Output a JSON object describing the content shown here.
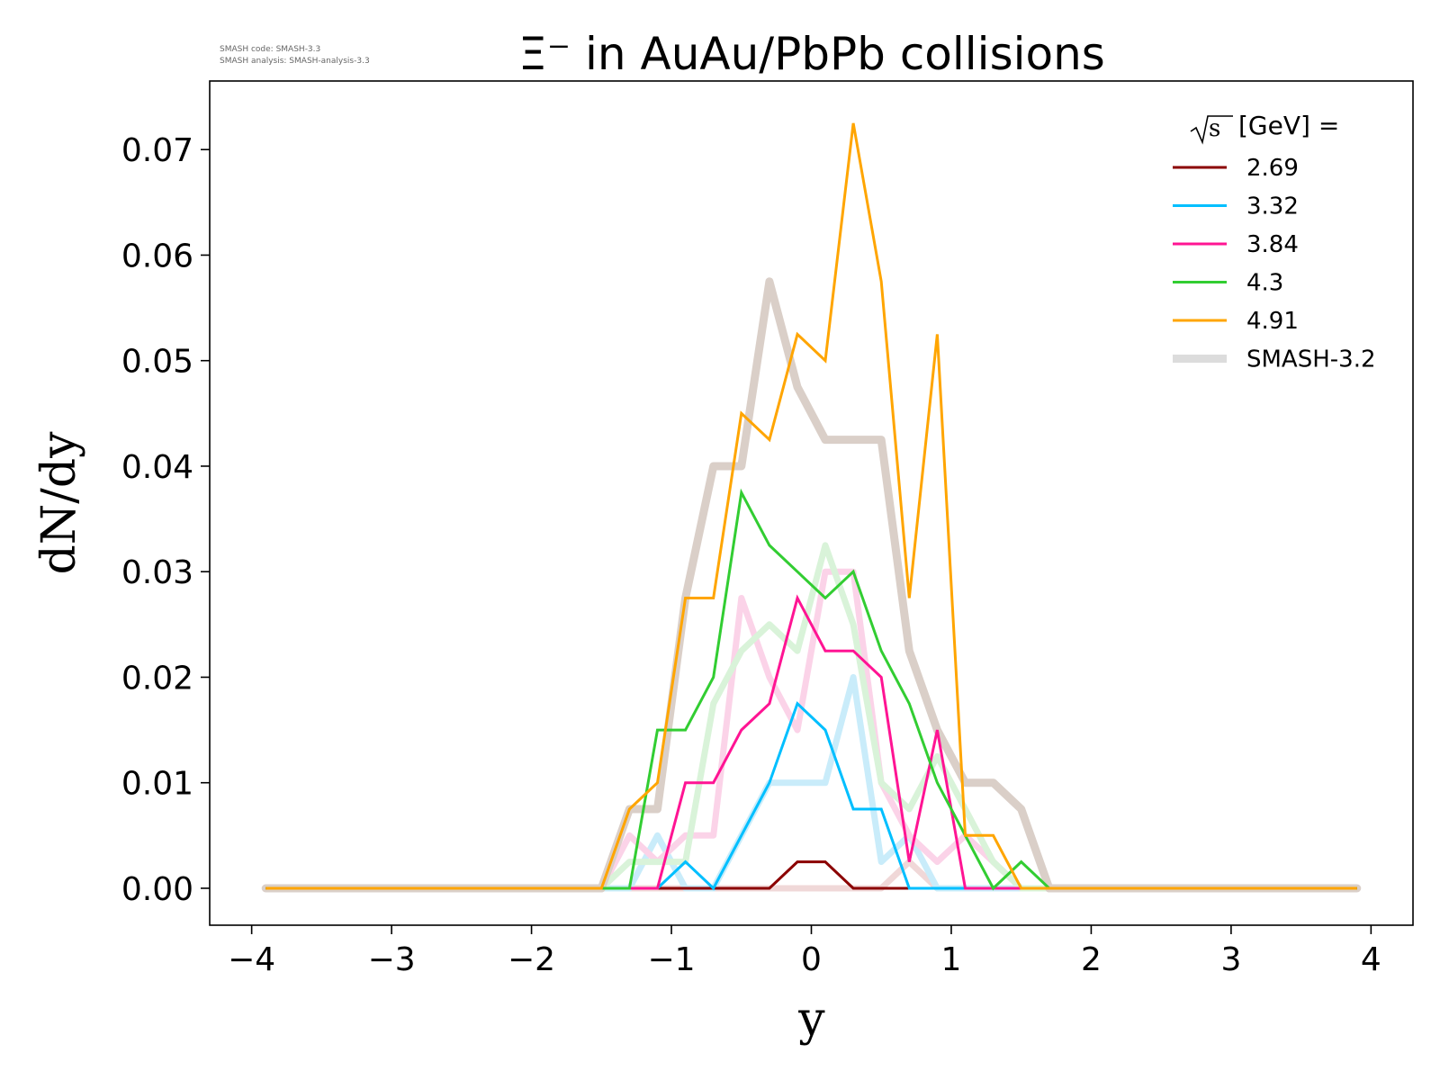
{
  "watermark": {
    "line1": "SMASH code:      SMASH-3.3",
    "line2": "SMASH analysis: SMASH-analysis-3.3"
  },
  "chart_data": {
    "type": "line",
    "title": "Ξ⁻ in AuAu/PbPb collisions",
    "xlabel": "y",
    "ylabel": "dN/dy",
    "xlim": [
      -4.3,
      4.3
    ],
    "ylim": [
      -0.0035,
      0.0765
    ],
    "xticks": [
      -4,
      -3,
      -2,
      -1,
      0,
      1,
      2,
      3,
      4
    ],
    "xtick_labels": [
      "−4",
      "−3",
      "−2",
      "−1",
      "0",
      "1",
      "2",
      "3",
      "4"
    ],
    "yticks": [
      0.0,
      0.01,
      0.02,
      0.03,
      0.04,
      0.05,
      0.06,
      0.07
    ],
    "ytick_labels": [
      "0.00",
      "0.01",
      "0.02",
      "0.03",
      "0.04",
      "0.05",
      "0.06",
      "0.07"
    ],
    "grid": false,
    "legend": {
      "placement": "upper-right",
      "title_prefix": "s",
      "title_suffix": " [GeV] ="
    },
    "x": [
      -3.9,
      -3.7,
      -3.5,
      -3.3,
      -3.1,
      -2.9,
      -2.7,
      -2.5,
      -2.3,
      -2.1,
      -1.9,
      -1.7,
      -1.5,
      -1.3,
      -1.1,
      -0.9,
      -0.7,
      -0.5,
      -0.3,
      -0.1,
      0.1,
      0.3,
      0.5,
      0.7,
      0.9,
      1.1,
      1.3,
      1.5,
      1.7,
      1.9,
      2.1,
      2.3,
      2.5,
      2.7,
      2.9,
      3.1,
      3.3,
      3.5,
      3.7,
      3.9
    ],
    "reference_series": [
      {
        "values": [
          0,
          0,
          0,
          0,
          0,
          0,
          0,
          0,
          0,
          0,
          0,
          0,
          0,
          0,
          0,
          0,
          0,
          0,
          0,
          0,
          0,
          0,
          0,
          0.0025,
          0,
          0,
          0,
          0,
          0,
          0,
          0,
          0,
          0,
          0,
          0,
          0,
          0,
          0,
          0,
          0
        ],
        "color": "#f0d8d8",
        "width": 7
      },
      {
        "values": [
          0,
          0,
          0,
          0,
          0,
          0,
          0,
          0,
          0,
          0,
          0,
          0,
          0,
          0,
          0.005,
          0,
          0,
          0.005,
          0.01,
          0.01,
          0.01,
          0.02,
          0.0025,
          0.005,
          0,
          0,
          0,
          0,
          0,
          0,
          0,
          0,
          0,
          0,
          0,
          0,
          0,
          0,
          0,
          0
        ],
        "color": "#c9ecfa",
        "width": 7
      },
      {
        "values": [
          0,
          0,
          0,
          0,
          0,
          0,
          0,
          0,
          0,
          0,
          0,
          0,
          0,
          0.005,
          0.0025,
          0.005,
          0.005,
          0.0275,
          0.02,
          0.015,
          0.03,
          0.03,
          0.01,
          0.005,
          0.0025,
          0.005,
          0.0025,
          0,
          0,
          0,
          0,
          0,
          0,
          0,
          0,
          0,
          0,
          0,
          0,
          0
        ],
        "color": "#fbd3e8",
        "width": 7
      },
      {
        "values": [
          0,
          0,
          0,
          0,
          0,
          0,
          0,
          0,
          0,
          0,
          0,
          0,
          0,
          0.0025,
          0.0025,
          0.0025,
          0.0175,
          0.0225,
          0.025,
          0.0225,
          0.0325,
          0.025,
          0.01,
          0.0075,
          0.0125,
          0.0075,
          0.0025,
          0,
          0,
          0,
          0,
          0,
          0,
          0,
          0,
          0,
          0,
          0,
          0,
          0
        ],
        "color": "#d9f3d9",
        "width": 7
      },
      {
        "values": [
          0,
          0,
          0,
          0,
          0,
          0,
          0,
          0,
          0,
          0,
          0,
          0,
          0,
          0.0075,
          0.0075,
          0.0275,
          0.04,
          0.04,
          0.0575,
          0.0475,
          0.0425,
          0.0425,
          0.0425,
          0.0225,
          0.015,
          0.01,
          0.01,
          0.0075,
          0,
          0,
          0,
          0,
          0,
          0,
          0,
          0,
          0,
          0,
          0,
          0
        ],
        "color": "#dacfc8",
        "width": 9
      }
    ],
    "series": [
      {
        "name": "2.69",
        "color": "#8b0000",
        "values": [
          0,
          0,
          0,
          0,
          0,
          0,
          0,
          0,
          0,
          0,
          0,
          0,
          0,
          0,
          0,
          0,
          0,
          0,
          0,
          0.0025,
          0.0025,
          0,
          0,
          0,
          0,
          0,
          0,
          0,
          0,
          0,
          0,
          0,
          0,
          0,
          0,
          0,
          0,
          0,
          0,
          0
        ]
      },
      {
        "name": "3.32",
        "color": "#00bfff",
        "values": [
          0,
          0,
          0,
          0,
          0,
          0,
          0,
          0,
          0,
          0,
          0,
          0,
          0,
          0,
          0,
          0.0025,
          0,
          0.005,
          0.01,
          0.0175,
          0.015,
          0.0075,
          0.0075,
          0,
          0,
          0,
          0,
          0,
          0,
          0,
          0,
          0,
          0,
          0,
          0,
          0,
          0,
          0,
          0,
          0
        ]
      },
      {
        "name": "3.84",
        "color": "#ff1493",
        "values": [
          0,
          0,
          0,
          0,
          0,
          0,
          0,
          0,
          0,
          0,
          0,
          0,
          0,
          0,
          0,
          0.01,
          0.01,
          0.015,
          0.0175,
          0.0275,
          0.0225,
          0.0225,
          0.02,
          0.0025,
          0.015,
          0,
          0,
          0,
          0,
          0,
          0,
          0,
          0,
          0,
          0,
          0,
          0,
          0,
          0,
          0
        ]
      },
      {
        "name": "4.3",
        "color": "#32cd32",
        "values": [
          0,
          0,
          0,
          0,
          0,
          0,
          0,
          0,
          0,
          0,
          0,
          0,
          0,
          0,
          0.015,
          0.015,
          0.02,
          0.0375,
          0.0325,
          0.03,
          0.0275,
          0.03,
          0.0225,
          0.0175,
          0.01,
          0.005,
          0,
          0.0025,
          0,
          0,
          0,
          0,
          0,
          0,
          0,
          0,
          0,
          0,
          0,
          0
        ]
      },
      {
        "name": "4.91",
        "color": "#ffa500",
        "values": [
          0,
          0,
          0,
          0,
          0,
          0,
          0,
          0,
          0,
          0,
          0,
          0,
          0,
          0.0075,
          0.01,
          0.0275,
          0.0275,
          0.045,
          0.0425,
          0.0525,
          0.05,
          0.0725,
          0.0575,
          0.0275,
          0.0525,
          0.005,
          0.005,
          0,
          0,
          0,
          0,
          0,
          0,
          0,
          0,
          0,
          0,
          0,
          0,
          0
        ]
      }
    ],
    "reference_legend": {
      "name": "SMASH-3.2",
      "color": "#dcdcdc"
    }
  }
}
